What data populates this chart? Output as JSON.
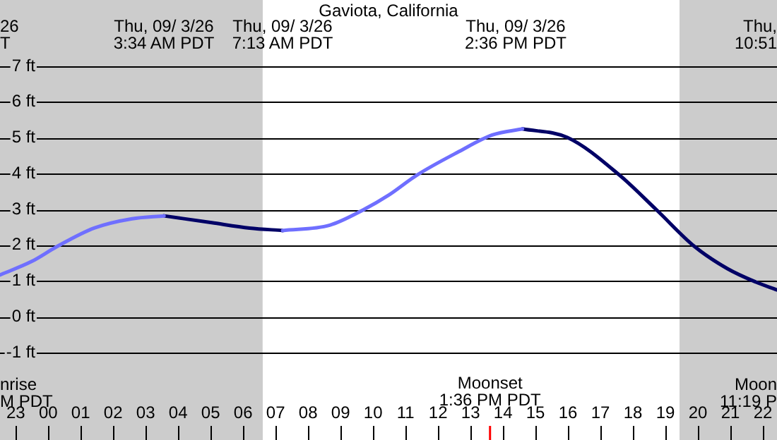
{
  "chart_data": {
    "type": "line",
    "title": "Gaviota, California",
    "xlim": [
      "--03-25T22:31",
      "--03-26T22:26"
    ],
    "ylim": [
      -1,
      7
    ],
    "xticks": [
      {
        "value": "--03-25T23:00",
        "label": "23"
      },
      {
        "value": "--03-26T00:00",
        "label": "00"
      },
      {
        "value": "--03-26T01:00",
        "label": "01"
      },
      {
        "value": "--03-26T02:00",
        "label": "02"
      },
      {
        "value": "--03-26T03:00",
        "label": "03"
      },
      {
        "value": "--03-26T04:00",
        "label": "04"
      },
      {
        "value": "--03-26T05:00",
        "label": "05"
      },
      {
        "value": "--03-26T06:00",
        "label": "06"
      },
      {
        "value": "--03-26T07:00",
        "label": "07"
      },
      {
        "value": "--03-26T08:00",
        "label": "08"
      },
      {
        "value": "--03-26T09:00",
        "label": "09"
      },
      {
        "value": "--03-26T10:00",
        "label": "10"
      },
      {
        "value": "--03-26T11:00",
        "label": "11"
      },
      {
        "value": "--03-26T12:00",
        "label": "12"
      },
      {
        "value": "--03-26T13:00",
        "label": "13"
      },
      {
        "value": "--03-26T14:00",
        "label": "14"
      },
      {
        "value": "--03-26T15:00",
        "label": "15"
      },
      {
        "value": "--03-26T16:00",
        "label": "16"
      },
      {
        "value": "--03-26T17:00",
        "label": "17"
      },
      {
        "value": "--03-26T18:00",
        "label": "18"
      },
      {
        "value": "--03-26T19:00",
        "label": "19"
      },
      {
        "value": "--03-26T20:00",
        "label": "20"
      },
      {
        "value": "--03-26T21:00",
        "label": "21"
      },
      {
        "value": "--03-26T22:00",
        "label": "22"
      }
    ],
    "yticks": [
      {
        "value": -1,
        "label": "-1 ft"
      },
      {
        "value": 0,
        "label": "0 ft"
      },
      {
        "value": 1,
        "label": "1 ft"
      },
      {
        "value": 2,
        "label": "2 ft"
      },
      {
        "value": 3,
        "label": "3 ft"
      },
      {
        "value": 4,
        "label": "4 ft"
      },
      {
        "value": 5,
        "label": "5 ft"
      },
      {
        "value": 6,
        "label": "6 ft"
      },
      {
        "value": 7,
        "label": "7 ft"
      }
    ],
    "grid": "y",
    "legend": false,
    "marker": "none",
    "series": [
      {
        "color": "#6f6fff",
        "x": [
          "--03-25T22:31",
          "--03-25T23:30",
          "--03-26T00:16",
          "--03-26T01:25",
          "--03-26T02:35",
          "--03-26T03:34",
          "--03-26T05:24",
          "--03-26T07:13",
          "--03-26T08:40",
          "--03-26T09:41",
          "--03-26T10:29",
          "--03-26T11:21",
          "--03-26T12:39",
          "--03-26T13:40",
          "--03-26T14:36"
        ],
        "values": [
          1.17,
          1.55,
          1.96,
          2.48,
          2.74,
          2.82,
          null,
          2.41,
          2.56,
          2.98,
          3.4,
          3.96,
          4.62,
          5.08,
          5.25
        ]
      },
      {
        "color": "#000066",
        "x": [
          "--03-26T03:34",
          "--03-26T05:02",
          "--03-26T06:12",
          "--03-26T07:13",
          "--03-26T11:00",
          "--03-26T14:36",
          "--03-26T15:59",
          "--03-26T17:35",
          "--03-26T18:44",
          "--03-26T19:54",
          "--03-26T20:55",
          "--03-26T21:47",
          "--03-26T22:26"
        ],
        "values": [
          2.82,
          2.63,
          2.48,
          2.41,
          null,
          5.25,
          5.01,
          3.96,
          2.98,
          1.96,
          1.34,
          0.97,
          0.75
        ]
      }
    ],
    "bands": [
      {
        "axis": "x",
        "from": "--03-25T22:31",
        "to": "--03-26T06:36",
        "color": "#cccccc"
      },
      {
        "axis": "x",
        "from": "--03-26T19:26",
        "to": "--03-26T22:26",
        "color": "#cccccc"
      }
    ],
    "ref_lines": [
      {
        "axis": "x",
        "value": "--03-26T13:36",
        "label": "Moonset\n1:36 PM PDT",
        "color": "#ff0000"
      }
    ],
    "annotations": [
      "Thu, 09/ 3/26\n3:34 AM PDT",
      "Thu, 09/ 3/26\n7:13 AM PDT",
      "Thu, 09/ 3/26\n2:36 PM PDT",
      "26\nT",
      "Thu,\n10:51",
      "nrise\nM PDT",
      "Moon\n11:19 P"
    ]
  }
}
